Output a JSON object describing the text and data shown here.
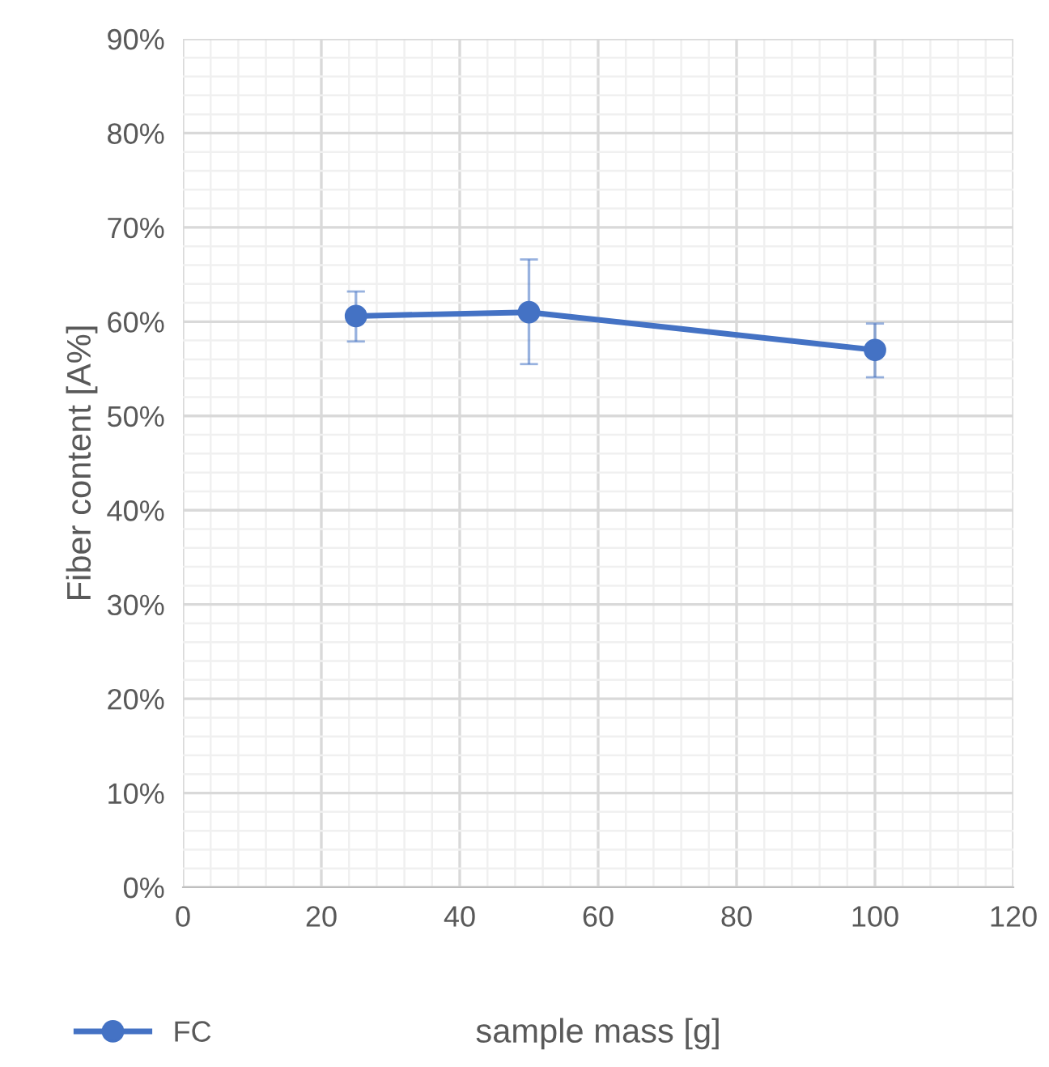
{
  "chart_data": {
    "type": "line",
    "xlabel": "sample mass [g]",
    "ylabel": "Fiber content [A%]",
    "x": [
      25,
      50,
      100
    ],
    "series": [
      {
        "name": "FC",
        "color": "#4472c4",
        "values": [
          60.6,
          61.0,
          57.0
        ],
        "errors": [
          [
            57.9,
            63.2
          ],
          [
            55.5,
            66.6
          ],
          [
            54.1,
            59.8
          ]
        ]
      }
    ],
    "xlim": [
      0,
      120
    ],
    "xticks": [
      0,
      20,
      40,
      60,
      80,
      100,
      120
    ],
    "ylim": [
      0,
      90
    ],
    "yticks": [
      {
        "value": 0,
        "label": "0%"
      },
      {
        "value": 10,
        "label": "10%"
      },
      {
        "value": 20,
        "label": "20%"
      },
      {
        "value": 30,
        "label": "30%"
      },
      {
        "value": 40,
        "label": "40%"
      },
      {
        "value": 50,
        "label": "50%"
      },
      {
        "value": 60,
        "label": "60%"
      },
      {
        "value": 70,
        "label": "70%"
      },
      {
        "value": 80,
        "label": "80%"
      },
      {
        "value": 90,
        "label": "90%"
      }
    ],
    "grid": true,
    "legend": "bottom left",
    "marker": "circle",
    "line_style": "solid"
  }
}
